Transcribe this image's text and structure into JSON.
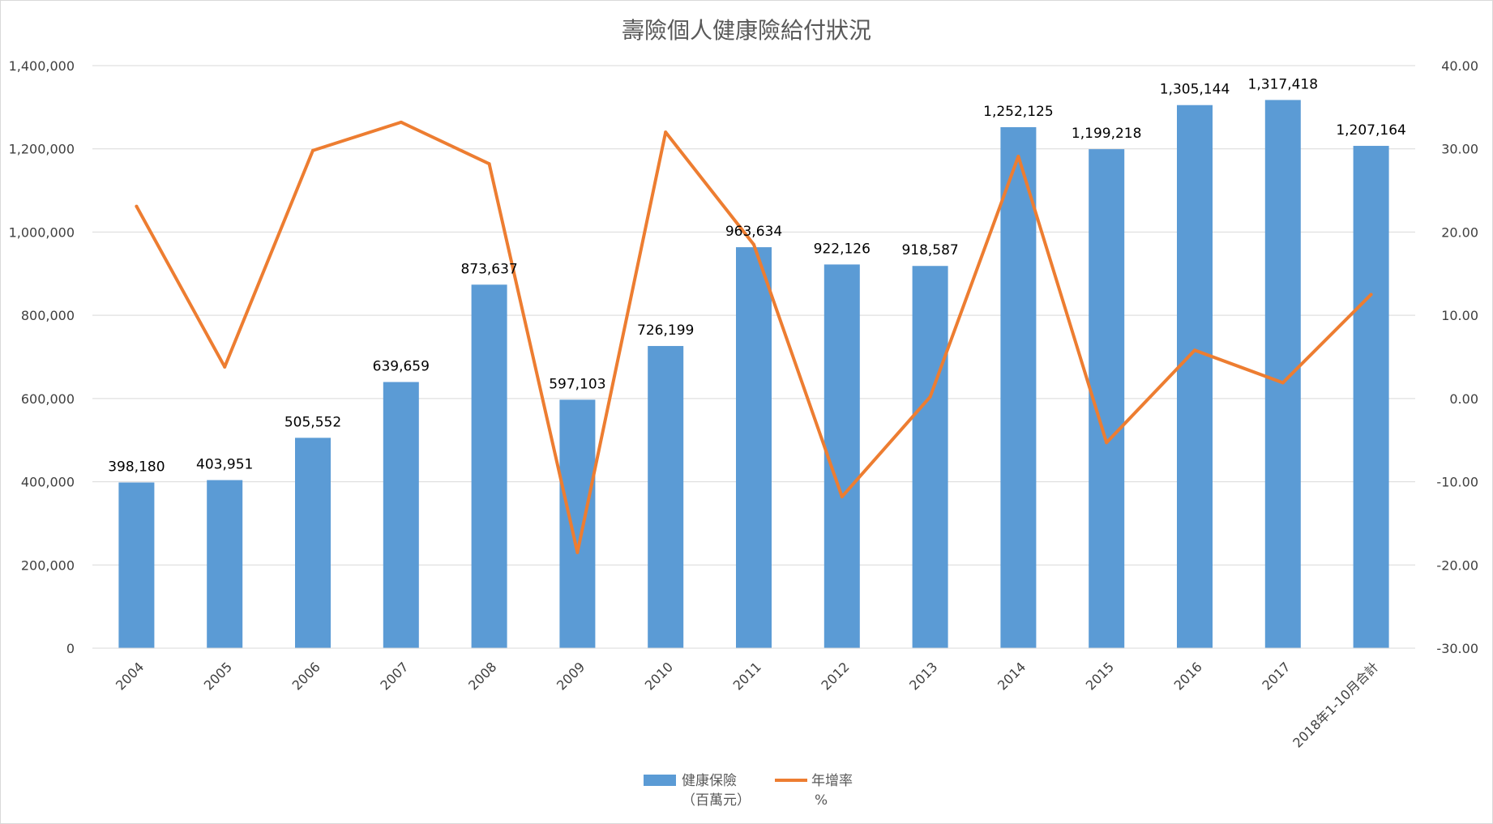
{
  "chart_data": {
    "type": "bar",
    "title": "壽險個人健康險給付狀況",
    "categories": [
      "2004",
      "2005",
      "2006",
      "2007",
      "2008",
      "2009",
      "2010",
      "2011",
      "2012",
      "2013",
      "2014",
      "2015",
      "2016",
      "2017",
      "2018年1-10月合計"
    ],
    "series": [
      {
        "name": "健康保險（百萬元）",
        "name_lines": [
          "健康保險",
          "（百萬元）"
        ],
        "type": "bar",
        "axis": "left",
        "color": "#5b9bd5",
        "values": [
          398180,
          403951,
          505552,
          639659,
          873637,
          597103,
          726199,
          963634,
          922126,
          918587,
          1252125,
          1199218,
          1305144,
          1317418,
          1207164
        ],
        "labels": [
          "398,180",
          "403,951",
          "505,552",
          "639,659",
          "873,637",
          "597,103",
          "726,199",
          "963,634",
          "922,126",
          "918,587",
          "1,252,125",
          "1,199,218",
          "1,305,144",
          "1,317,418",
          "1,207,164"
        ]
      },
      {
        "name": "年增率%",
        "name_lines": [
          "年增率",
          "%"
        ],
        "type": "line",
        "axis": "right",
        "color": "#ed7d31",
        "values": [
          23.1,
          3.8,
          29.8,
          33.2,
          28.2,
          -18.5,
          32.0,
          18.5,
          -11.8,
          0.2,
          29.1,
          -5.3,
          5.8,
          1.9,
          12.5
        ]
      }
    ],
    "y_left": {
      "range": [
        0,
        1400000
      ],
      "ticks": [
        0,
        200000,
        400000,
        600000,
        800000,
        1000000,
        1200000,
        1400000
      ],
      "tick_labels": [
        "0",
        "200,000",
        "400,000",
        "600,000",
        "800,000",
        "1,000,000",
        "1,200,000",
        "1,400,000"
      ]
    },
    "y_right": {
      "range": [
        -30,
        40
      ],
      "ticks": [
        -30,
        -20,
        -10,
        0,
        10,
        20,
        30,
        40
      ],
      "tick_labels": [
        "-30.00",
        "-20.00",
        "-10.00",
        "0.00",
        "10.00",
        "20.00",
        "30.00",
        "40.00"
      ]
    },
    "grid": true,
    "legend": "bottom"
  }
}
